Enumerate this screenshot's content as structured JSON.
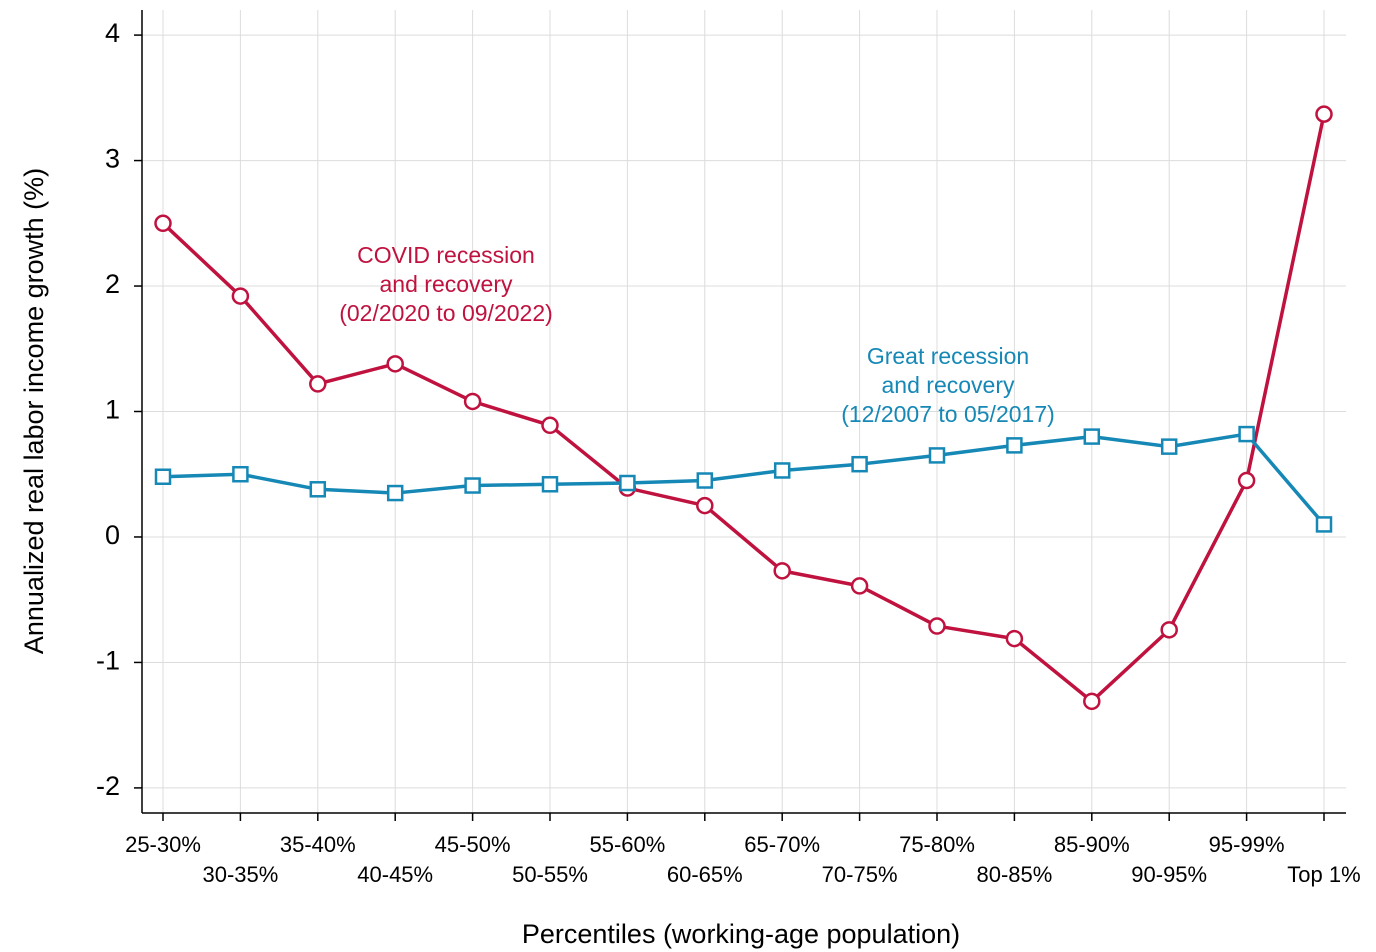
{
  "chart_data": {
    "type": "line",
    "x_label": "Percentiles (working-age population)",
    "y_label": "Annualized real labor income growth (%)",
    "categories": [
      "25-30%",
      "30-35%",
      "35-40%",
      "40-45%",
      "45-50%",
      "50-55%",
      "55-60%",
      "60-65%",
      "65-70%",
      "70-75%",
      "75-80%",
      "80-85%",
      "85-90%",
      "90-95%",
      "95-99%",
      "Top 1%"
    ],
    "series": [
      {
        "name": "COVID recession and recovery (02/2020 to 09/2022)",
        "color": "#c0123f",
        "marker": "circle",
        "values": [
          2.5,
          1.92,
          1.22,
          1.38,
          1.08,
          0.89,
          0.39,
          0.25,
          -0.27,
          -0.39,
          -0.71,
          -0.81,
          -1.31,
          -0.74,
          0.45,
          3.37
        ]
      },
      {
        "name": "Great recession and recovery (12/2007 to 05/2017)",
        "color": "#1688b6",
        "marker": "square",
        "values": [
          0.48,
          0.5,
          0.38,
          0.35,
          0.41,
          0.42,
          0.43,
          0.45,
          0.53,
          0.58,
          0.65,
          0.73,
          0.8,
          0.72,
          0.82,
          0.1
        ]
      }
    ],
    "annotations": [
      {
        "lines": [
          "COVID recession",
          "and recovery",
          "(02/2020 to 09/2022)"
        ],
        "color": "#c0123f"
      },
      {
        "lines": [
          "Great recession",
          "and recovery",
          "(12/2007 to 05/2017)"
        ],
        "color": "#1688b6"
      }
    ],
    "ylim": [
      -2.2,
      4.2
    ],
    "yticks": [
      -2,
      -1,
      0,
      1,
      2,
      3,
      4
    ],
    "grid": true
  }
}
